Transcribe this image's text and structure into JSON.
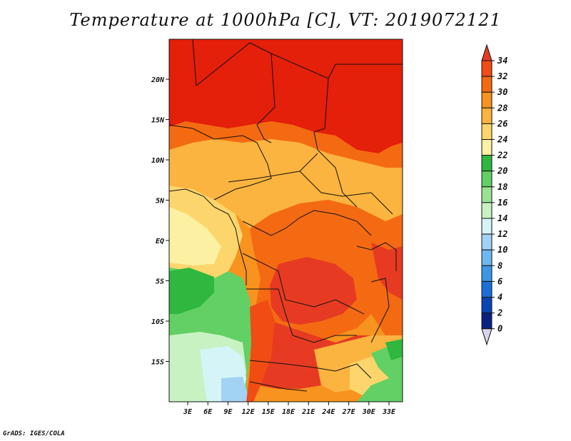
{
  "title": "Temperature at 1000hPa [C], VT: 2019072121",
  "credit": "GrADS: IGES/COLA",
  "map": {
    "x_ticks": [
      "3E",
      "6E",
      "9E",
      "12E",
      "15E",
      "18E",
      "21E",
      "24E",
      "27E",
      "30E",
      "33E"
    ],
    "y_ticks": [
      "20N",
      "15N",
      "10N",
      "5N",
      "EQ",
      "5S",
      "10S",
      "15S"
    ]
  },
  "colorbar": {
    "labels": [
      "34",
      "32",
      "30",
      "28",
      "26",
      "24",
      "22",
      "20",
      "18",
      "16",
      "14",
      "12",
      "10",
      "8",
      "6",
      "4",
      "2",
      "0"
    ],
    "colors": [
      "#e63b22",
      "#f04c14",
      "#f46a12",
      "#f7931e",
      "#fbb43f",
      "#fcd66c",
      "#fcf0a2",
      "#2fb73f",
      "#62d065",
      "#9ae293",
      "#c9f2c3",
      "#d5f4f8",
      "#a2d3f5",
      "#6db8f0",
      "#3c97e6",
      "#1b6fd6",
      "#0b44b3",
      "#0a2080",
      "#d8d4ee"
    ]
  }
}
